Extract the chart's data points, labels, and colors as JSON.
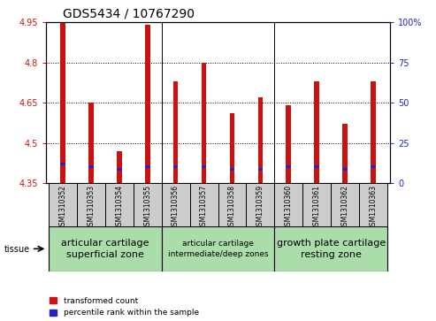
{
  "title": "GDS5434 / 10767290",
  "samples": [
    "GSM1310352",
    "GSM1310353",
    "GSM1310354",
    "GSM1310355",
    "GSM1310356",
    "GSM1310357",
    "GSM1310358",
    "GSM1310359",
    "GSM1310360",
    "GSM1310361",
    "GSM1310362",
    "GSM1310363"
  ],
  "red_values": [
    4.95,
    4.65,
    4.47,
    4.94,
    4.73,
    4.8,
    4.61,
    4.67,
    4.64,
    4.73,
    4.57,
    4.73
  ],
  "blue_values": [
    4.415,
    4.405,
    4.395,
    4.405,
    4.405,
    4.405,
    4.395,
    4.395,
    4.405,
    4.405,
    4.395,
    4.405
  ],
  "ymin": 4.35,
  "ymax": 4.95,
  "yticks": [
    4.35,
    4.5,
    4.65,
    4.8,
    4.95
  ],
  "ytick_labels": [
    "4.35",
    "4.5",
    "4.65",
    "4.8",
    "4.95"
  ],
  "right_ytick_pcts": [
    0,
    25,
    50,
    75,
    100
  ],
  "right_ytick_labels": [
    "0",
    "25",
    "50",
    "75",
    "100%"
  ],
  "red_color": "#cc1111",
  "blue_color": "#2222cc",
  "sample_bg": "#cccccc",
  "green_color": "#aaddaa",
  "groups": [
    {
      "label": "articular cartilage\nsuperficial zone",
      "start": 0,
      "end": 3,
      "fontsize": 8
    },
    {
      "label": "articular cartilage\nintermediate/deep zones",
      "start": 4,
      "end": 7,
      "fontsize": 6.5
    },
    {
      "label": "growth plate cartilage\nresting zone",
      "start": 8,
      "end": 11,
      "fontsize": 8
    }
  ],
  "tissue_label": "tissue",
  "legend_red": "transformed count",
  "legend_blue": "percentile rank within the sample",
  "title_fontsize": 10,
  "tick_fontsize": 7,
  "bar_width": 0.4,
  "red_bar_width": 0.18,
  "blue_bar_height": 0.012
}
